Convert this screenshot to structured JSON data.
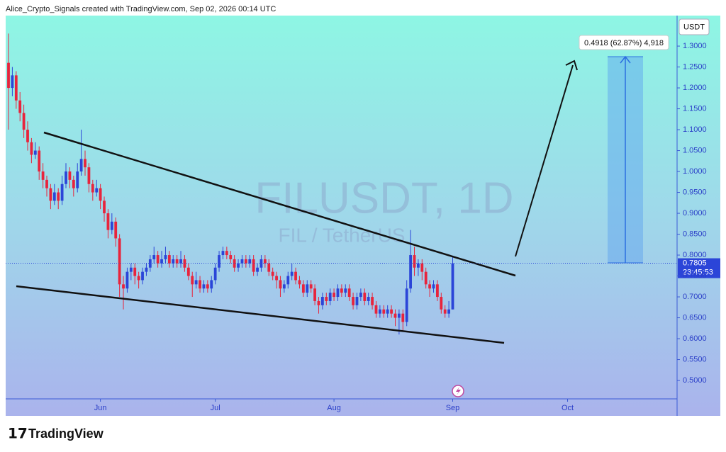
{
  "header": {
    "text": "Alice_Crypto_Signals created with TradingView.com, Sep 02, 2026 00:14 UTC"
  },
  "chart_data": {
    "type": "candlestick",
    "title": "FILUSDT, 1D",
    "subtitle": "FIL / TetherUS",
    "y_axis_label": "USDT",
    "up_color": "#2b45d8",
    "down_color": "#e8243c",
    "ylim": [
      0.456,
      1.373
    ],
    "yticks": [
      {
        "value": 0.5,
        "label": "0.5000"
      },
      {
        "value": 0.55,
        "label": "0.5500"
      },
      {
        "value": 0.6,
        "label": "0.6000"
      },
      {
        "value": 0.65,
        "label": "0.6500"
      },
      {
        "value": 0.7,
        "label": "0.7000"
      },
      {
        "value": 0.75,
        "label": "0.7500"
      },
      {
        "value": 0.8,
        "label": "0.8000"
      },
      {
        "value": 0.85,
        "label": "0.8500"
      },
      {
        "value": 0.9,
        "label": "0.9000"
      },
      {
        "value": 0.95,
        "label": "0.9500"
      },
      {
        "value": 1,
        "label": "1.0000"
      },
      {
        "value": 1.05,
        "label": "1.0500"
      },
      {
        "value": 1.1,
        "label": "1.1000"
      },
      {
        "value": 1.15,
        "label": "1.1500"
      },
      {
        "value": 1.2,
        "label": "1.2000"
      },
      {
        "value": 1.25,
        "label": "1.2500"
      },
      {
        "value": 1.3,
        "label": "1.3000"
      }
    ],
    "xlim": [
      -0.74,
      174.6
    ],
    "xticks": [
      {
        "value": 24,
        "label": "Jun"
      },
      {
        "value": 54,
        "label": "Jul"
      },
      {
        "value": 85,
        "label": "Aug"
      },
      {
        "value": 116,
        "label": "Sep"
      },
      {
        "value": 146,
        "label": "Oct"
      }
    ],
    "last_price": 0.7805,
    "countdown": "23:45:53",
    "annotation": "0.4918 (62.87%) 4,918",
    "candles": [
      [
        1.26,
        1.33,
        1.1,
        1.2
      ],
      [
        1.2,
        1.25,
        1.18,
        1.23
      ],
      [
        1.23,
        1.24,
        1.15,
        1.17
      ],
      [
        1.17,
        1.19,
        1.12,
        1.14
      ],
      [
        1.14,
        1.16,
        1.08,
        1.1
      ],
      [
        1.1,
        1.12,
        1.05,
        1.07
      ],
      [
        1.07,
        1.08,
        1.02,
        1.04
      ],
      [
        1.04,
        1.07,
        1.03,
        1.05
      ],
      [
        1.05,
        1.06,
        0.98,
        1.0
      ],
      [
        1.0,
        1.02,
        0.96,
        0.98
      ],
      [
        0.98,
        0.99,
        0.94,
        0.96
      ],
      [
        0.96,
        0.97,
        0.91,
        0.93
      ],
      [
        0.93,
        0.97,
        0.92,
        0.95
      ],
      [
        0.95,
        0.96,
        0.91,
        0.93
      ],
      [
        0.93,
        0.99,
        0.92,
        0.97
      ],
      [
        0.97,
        1.02,
        0.96,
        1.0
      ],
      [
        1.0,
        1.01,
        0.96,
        0.98
      ],
      [
        0.98,
        0.99,
        0.94,
        0.96
      ],
      [
        0.96,
        1.02,
        0.95,
        1.0
      ],
      [
        1.0,
        1.1,
        0.99,
        1.03
      ],
      [
        1.03,
        1.05,
        0.99,
        1.01
      ],
      [
        1.01,
        1.02,
        0.95,
        0.97
      ],
      [
        0.97,
        0.98,
        0.93,
        0.95
      ],
      [
        0.95,
        0.98,
        0.94,
        0.96
      ],
      [
        0.96,
        0.97,
        0.91,
        0.93
      ],
      [
        0.93,
        0.94,
        0.88,
        0.9
      ],
      [
        0.9,
        0.91,
        0.84,
        0.86
      ],
      [
        0.86,
        0.9,
        0.85,
        0.88
      ],
      [
        0.88,
        0.89,
        0.82,
        0.84
      ],
      [
        0.84,
        0.85,
        0.7,
        0.73
      ],
      [
        0.73,
        0.75,
        0.67,
        0.72
      ],
      [
        0.72,
        0.77,
        0.71,
        0.76
      ],
      [
        0.76,
        0.78,
        0.74,
        0.77
      ],
      [
        0.77,
        0.78,
        0.73,
        0.75
      ],
      [
        0.75,
        0.76,
        0.72,
        0.74
      ],
      [
        0.74,
        0.77,
        0.73,
        0.76
      ],
      [
        0.76,
        0.78,
        0.75,
        0.77
      ],
      [
        0.77,
        0.8,
        0.76,
        0.79
      ],
      [
        0.79,
        0.82,
        0.78,
        0.8
      ],
      [
        0.8,
        0.81,
        0.77,
        0.78
      ],
      [
        0.78,
        0.81,
        0.77,
        0.79
      ],
      [
        0.79,
        0.82,
        0.78,
        0.8
      ],
      [
        0.8,
        0.81,
        0.77,
        0.78
      ],
      [
        0.78,
        0.8,
        0.77,
        0.79
      ],
      [
        0.79,
        0.8,
        0.77,
        0.78
      ],
      [
        0.78,
        0.81,
        0.77,
        0.79
      ],
      [
        0.79,
        0.8,
        0.76,
        0.77
      ],
      [
        0.77,
        0.78,
        0.74,
        0.75
      ],
      [
        0.75,
        0.76,
        0.7,
        0.73
      ],
      [
        0.73,
        0.76,
        0.72,
        0.74
      ],
      [
        0.74,
        0.75,
        0.71,
        0.72
      ],
      [
        0.72,
        0.74,
        0.71,
        0.73
      ],
      [
        0.73,
        0.74,
        0.71,
        0.72
      ],
      [
        0.72,
        0.75,
        0.71,
        0.74
      ],
      [
        0.74,
        0.78,
        0.73,
        0.77
      ],
      [
        0.77,
        0.81,
        0.76,
        0.8
      ],
      [
        0.8,
        0.82,
        0.79,
        0.81
      ],
      [
        0.81,
        0.82,
        0.79,
        0.8
      ],
      [
        0.8,
        0.81,
        0.78,
        0.79
      ],
      [
        0.79,
        0.8,
        0.76,
        0.77
      ],
      [
        0.77,
        0.79,
        0.76,
        0.78
      ],
      [
        0.78,
        0.8,
        0.77,
        0.79
      ],
      [
        0.79,
        0.8,
        0.77,
        0.78
      ],
      [
        0.78,
        0.8,
        0.77,
        0.79
      ],
      [
        0.79,
        0.8,
        0.75,
        0.76
      ],
      [
        0.76,
        0.78,
        0.75,
        0.77
      ],
      [
        0.77,
        0.8,
        0.76,
        0.79
      ],
      [
        0.79,
        0.8,
        0.77,
        0.78
      ],
      [
        0.78,
        0.79,
        0.75,
        0.76
      ],
      [
        0.76,
        0.77,
        0.74,
        0.75
      ],
      [
        0.75,
        0.76,
        0.72,
        0.74
      ],
      [
        0.74,
        0.75,
        0.7,
        0.72
      ],
      [
        0.72,
        0.74,
        0.71,
        0.73
      ],
      [
        0.73,
        0.76,
        0.72,
        0.75
      ],
      [
        0.75,
        0.78,
        0.74,
        0.76
      ],
      [
        0.76,
        0.77,
        0.73,
        0.74
      ],
      [
        0.74,
        0.75,
        0.72,
        0.73
      ],
      [
        0.73,
        0.74,
        0.7,
        0.71
      ],
      [
        0.71,
        0.74,
        0.7,
        0.73
      ],
      [
        0.73,
        0.74,
        0.71,
        0.72
      ],
      [
        0.72,
        0.73,
        0.68,
        0.69
      ],
      [
        0.69,
        0.7,
        0.66,
        0.68
      ],
      [
        0.68,
        0.71,
        0.67,
        0.7
      ],
      [
        0.7,
        0.71,
        0.68,
        0.69
      ],
      [
        0.69,
        0.72,
        0.68,
        0.71
      ],
      [
        0.71,
        0.72,
        0.69,
        0.7
      ],
      [
        0.7,
        0.73,
        0.69,
        0.72
      ],
      [
        0.72,
        0.73,
        0.7,
        0.71
      ],
      [
        0.71,
        0.73,
        0.7,
        0.72
      ],
      [
        0.72,
        0.73,
        0.69,
        0.7
      ],
      [
        0.7,
        0.71,
        0.67,
        0.68
      ],
      [
        0.68,
        0.71,
        0.67,
        0.7
      ],
      [
        0.7,
        0.72,
        0.69,
        0.71
      ],
      [
        0.71,
        0.72,
        0.68,
        0.69
      ],
      [
        0.69,
        0.71,
        0.68,
        0.7
      ],
      [
        0.7,
        0.71,
        0.67,
        0.68
      ],
      [
        0.68,
        0.69,
        0.65,
        0.66
      ],
      [
        0.66,
        0.68,
        0.65,
        0.67
      ],
      [
        0.67,
        0.68,
        0.65,
        0.66
      ],
      [
        0.66,
        0.68,
        0.65,
        0.67
      ],
      [
        0.67,
        0.68,
        0.65,
        0.66
      ],
      [
        0.66,
        0.67,
        0.63,
        0.65
      ],
      [
        0.65,
        0.67,
        0.61,
        0.66
      ],
      [
        0.66,
        0.67,
        0.62,
        0.64
      ],
      [
        0.64,
        0.74,
        0.63,
        0.72
      ],
      [
        0.72,
        0.86,
        0.71,
        0.8
      ],
      [
        0.8,
        0.82,
        0.75,
        0.77
      ],
      [
        0.77,
        0.79,
        0.75,
        0.78
      ],
      [
        0.78,
        0.79,
        0.74,
        0.76
      ],
      [
        0.76,
        0.77,
        0.72,
        0.73
      ],
      [
        0.73,
        0.74,
        0.7,
        0.72
      ],
      [
        0.72,
        0.74,
        0.71,
        0.73
      ],
      [
        0.73,
        0.74,
        0.69,
        0.7
      ],
      [
        0.7,
        0.71,
        0.66,
        0.67
      ],
      [
        0.67,
        0.68,
        0.65,
        0.66
      ],
      [
        0.66,
        0.69,
        0.65,
        0.67
      ],
      [
        0.67,
        0.795,
        0.67,
        0.7805
      ]
    ]
  },
  "footer": {
    "logo": "TradingView"
  }
}
